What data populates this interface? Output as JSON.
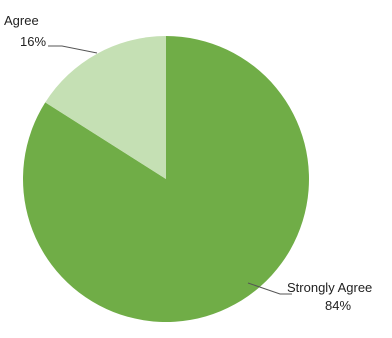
{
  "chart_data": {
    "type": "pie",
    "title": "",
    "slices": [
      {
        "label": "Strongly Agree",
        "value": 84,
        "value_label": "84%",
        "color": "#70ad47"
      },
      {
        "label": "Agree",
        "value": 16,
        "value_label": "16%",
        "color": "#c5e0b4"
      }
    ],
    "legend": "none",
    "data_labels": "outside-with-leader-lines"
  }
}
